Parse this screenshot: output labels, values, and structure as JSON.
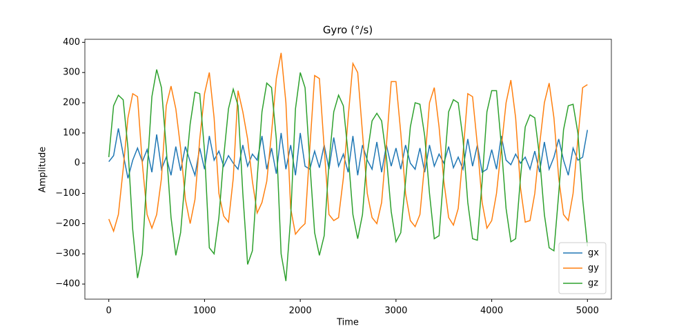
{
  "chart_data": {
    "type": "line",
    "title": "Gyro (°/s)",
    "x_label": "Time",
    "y_label": "Amplitude",
    "x": [
      0,
      50,
      100,
      150,
      200,
      250,
      300,
      350,
      400,
      450,
      500,
      550,
      600,
      650,
      700,
      750,
      800,
      850,
      900,
      950,
      1000,
      1050,
      1100,
      1150,
      1200,
      1250,
      1300,
      1350,
      1400,
      1450,
      1500,
      1550,
      1600,
      1650,
      1700,
      1750,
      1800,
      1850,
      1900,
      1950,
      2000,
      2050,
      2100,
      2150,
      2200,
      2250,
      2300,
      2350,
      2400,
      2450,
      2500,
      2550,
      2600,
      2650,
      2700,
      2750,
      2800,
      2850,
      2900,
      2950,
      3000,
      3050,
      3100,
      3150,
      3200,
      3250,
      3300,
      3350,
      3400,
      3450,
      3500,
      3550,
      3600,
      3650,
      3700,
      3750,
      3800,
      3850,
      3900,
      3950,
      4000,
      4050,
      4100,
      4150,
      4200,
      4250,
      4300,
      4350,
      4400,
      4450,
      4500,
      4550,
      4600,
      4650,
      4700,
      4750,
      4800,
      4850,
      4900,
      4950,
      5000
    ],
    "series": [
      {
        "name": "gx",
        "color": "#1f77b4",
        "values": [
          5,
          25,
          115,
          30,
          -50,
          10,
          50,
          5,
          45,
          -30,
          95,
          -20,
          20,
          -40,
          55,
          -25,
          55,
          5,
          -40,
          50,
          -20,
          90,
          10,
          40,
          -10,
          25,
          0,
          -20,
          60,
          -10,
          30,
          10,
          90,
          -20,
          50,
          -35,
          100,
          -20,
          60,
          -40,
          100,
          -10,
          -20,
          40,
          -15,
          60,
          -20,
          85,
          -10,
          30,
          -30,
          90,
          -40,
          60,
          10,
          -20,
          70,
          -30,
          60,
          -10,
          50,
          -20,
          60,
          0,
          -20,
          50,
          -30,
          60,
          -10,
          30,
          0,
          55,
          -15,
          20,
          -20,
          80,
          -10,
          60,
          -30,
          -20,
          45,
          -20,
          90,
          10,
          -5,
          30,
          0,
          20,
          -20,
          40,
          -30,
          70,
          -20,
          20,
          80,
          10,
          -40,
          50,
          10,
          20,
          110
        ]
      },
      {
        "name": "gy",
        "color": "#ff7f0e",
        "values": [
          -185,
          -225,
          -170,
          -20,
          150,
          230,
          220,
          0,
          -170,
          -215,
          -170,
          -50,
          190,
          255,
          180,
          50,
          -120,
          -200,
          -120,
          80,
          230,
          300,
          150,
          -100,
          -175,
          -195,
          -50,
          240,
          170,
          80,
          -60,
          -165,
          -130,
          -60,
          100,
          280,
          365,
          200,
          -150,
          -235,
          -215,
          -200,
          50,
          290,
          280,
          50,
          -170,
          -190,
          -180,
          -50,
          150,
          330,
          300,
          100,
          -100,
          -180,
          -200,
          -130,
          60,
          270,
          270,
          100,
          -100,
          -190,
          -210,
          -170,
          0,
          200,
          250,
          120,
          -60,
          -180,
          -205,
          -150,
          30,
          230,
          220,
          60,
          -130,
          -215,
          -190,
          -100,
          50,
          200,
          275,
          150,
          -80,
          -195,
          -190,
          -100,
          60,
          200,
          265,
          150,
          -50,
          -170,
          -190,
          -100,
          80,
          250,
          260
        ]
      },
      {
        "name": "gz",
        "color": "#2ca02c",
        "values": [
          20,
          190,
          225,
          210,
          50,
          -220,
          -380,
          -300,
          -30,
          220,
          310,
          250,
          50,
          -180,
          -305,
          -230,
          -40,
          130,
          235,
          230,
          40,
          -280,
          -300,
          -180,
          20,
          180,
          245,
          190,
          -100,
          -335,
          -290,
          -50,
          170,
          265,
          250,
          80,
          -300,
          -390,
          -180,
          180,
          300,
          250,
          0,
          -230,
          -305,
          -240,
          0,
          170,
          225,
          190,
          30,
          -170,
          -250,
          -170,
          30,
          140,
          165,
          140,
          20,
          -160,
          -260,
          -230,
          -60,
          120,
          200,
          195,
          90,
          -100,
          -250,
          -240,
          -30,
          170,
          210,
          200,
          80,
          -130,
          -250,
          -255,
          -60,
          170,
          240,
          240,
          60,
          -150,
          -260,
          -250,
          -50,
          120,
          160,
          150,
          20,
          -170,
          -280,
          -290,
          -100,
          110,
          190,
          195,
          100,
          -120,
          -275
        ]
      }
    ],
    "xlim": [
      -250,
      5250
    ],
    "ylim": [
      -450,
      410
    ],
    "xticks": [
      0,
      1000,
      2000,
      3000,
      4000,
      5000
    ],
    "yticks": [
      {
        "value": -400,
        "label": "−400"
      },
      {
        "value": -300,
        "label": "−300"
      },
      {
        "value": -200,
        "label": "−200"
      },
      {
        "value": -100,
        "label": "−100"
      },
      0,
      100,
      200,
      300,
      400
    ],
    "legend": "lower right"
  }
}
